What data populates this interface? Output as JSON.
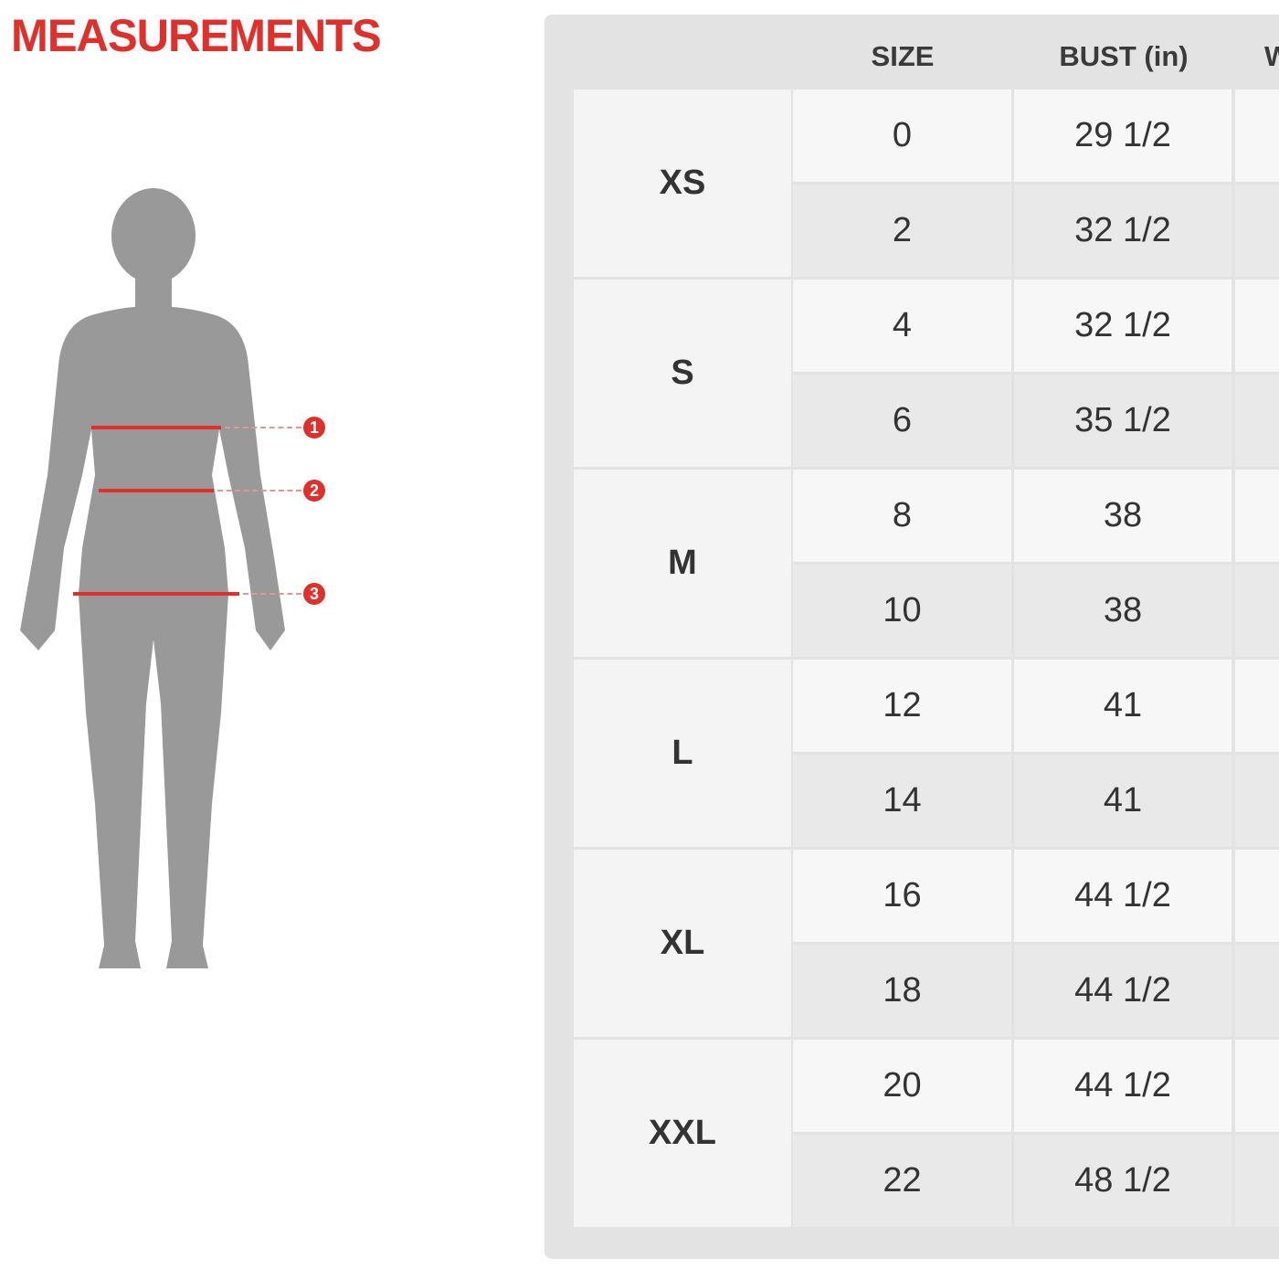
{
  "title": "MEASUREMENTS",
  "figure": {
    "markers": [
      "1",
      "2",
      "3"
    ],
    "accent_color": "#e0302c",
    "silhouette_color": "#999999"
  },
  "table": {
    "headers": [
      "SIZE",
      "BUST (in)",
      "W"
    ],
    "groups": [
      {
        "label": "XS",
        "rows": [
          {
            "size": "0",
            "bust": "29 1/2"
          },
          {
            "size": "2",
            "bust": "32 1/2"
          }
        ]
      },
      {
        "label": "S",
        "rows": [
          {
            "size": "4",
            "bust": "32 1/2"
          },
          {
            "size": "6",
            "bust": "35 1/2"
          }
        ]
      },
      {
        "label": "M",
        "rows": [
          {
            "size": "8",
            "bust": "38"
          },
          {
            "size": "10",
            "bust": "38"
          }
        ]
      },
      {
        "label": "L",
        "rows": [
          {
            "size": "12",
            "bust": "41"
          },
          {
            "size": "14",
            "bust": "41"
          }
        ]
      },
      {
        "label": "XL",
        "rows": [
          {
            "size": "16",
            "bust": "44 1/2"
          },
          {
            "size": "18",
            "bust": "44 1/2"
          }
        ]
      },
      {
        "label": "XXL",
        "rows": [
          {
            "size": "20",
            "bust": "44 1/2"
          },
          {
            "size": "22",
            "bust": "48 1/2"
          }
        ]
      }
    ]
  }
}
